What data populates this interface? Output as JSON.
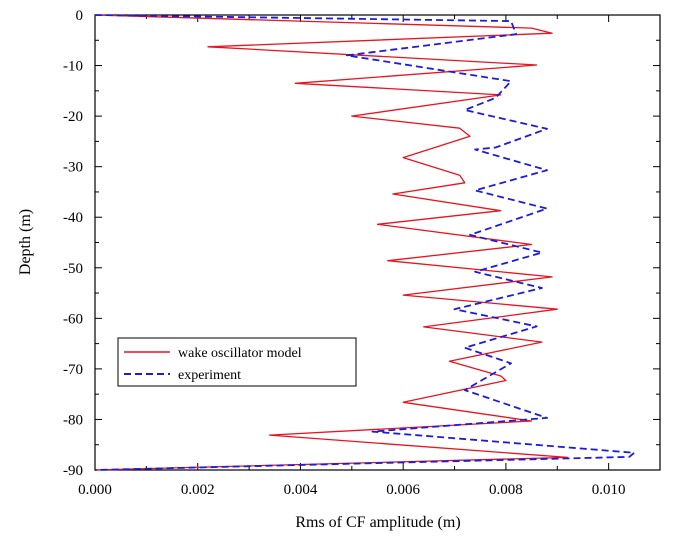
{
  "chart_data": {
    "type": "line",
    "xlabel": "Rms of CF amplitude (m)",
    "ylabel": "Depth (m)",
    "xlim": [
      0.0,
      0.011
    ],
    "ylim": [
      -90,
      0
    ],
    "x_ticks": [
      "0.000",
      "0.002",
      "0.004",
      "0.006",
      "0.008",
      "0.010"
    ],
    "y_ticks": [
      "0",
      "-10",
      "-20",
      "-30",
      "-40",
      "-50",
      "-60",
      "-70",
      "-80",
      "-90"
    ],
    "grid": false,
    "legend_position": "lower-left",
    "series": [
      {
        "name": "wake oscillator model",
        "color": "#e8141e",
        "style": "solid",
        "points": [
          [
            0.0,
            0.0
          ],
          [
            0.0085,
            -2.6
          ],
          [
            0.0089,
            -3.6
          ],
          [
            0.0022,
            -6.3
          ],
          [
            0.0086,
            -9.9
          ],
          [
            0.0039,
            -13.5
          ],
          [
            0.0079,
            -15.8
          ],
          [
            0.005,
            -20.0
          ],
          [
            0.0071,
            -22.4
          ],
          [
            0.0073,
            -24.0
          ],
          [
            0.006,
            -28.2
          ],
          [
            0.0071,
            -31.7
          ],
          [
            0.0072,
            -33.2
          ],
          [
            0.0058,
            -35.4
          ],
          [
            0.0079,
            -38.7
          ],
          [
            0.0055,
            -41.4
          ],
          [
            0.0085,
            -45.4
          ],
          [
            0.0057,
            -48.6
          ],
          [
            0.0089,
            -51.8
          ],
          [
            0.006,
            -55.4
          ],
          [
            0.009,
            -58.2
          ],
          [
            0.0064,
            -61.7
          ],
          [
            0.0087,
            -64.7
          ],
          [
            0.0069,
            -68.5
          ],
          [
            0.0079,
            -71.4
          ],
          [
            0.008,
            -72.3
          ],
          [
            0.006,
            -76.6
          ],
          [
            0.0085,
            -80.3
          ],
          [
            0.0034,
            -83.1
          ],
          [
            0.0092,
            -87.5
          ],
          [
            0.0,
            -90.0
          ]
        ]
      },
      {
        "name": "experiment",
        "color": "#1c1ce0",
        "style": "dashed",
        "points": [
          [
            0.0,
            0.0
          ],
          [
            0.0081,
            -1.2
          ],
          [
            0.0082,
            -3.8
          ],
          [
            0.0049,
            -8.0
          ],
          [
            0.0081,
            -13.1
          ],
          [
            0.0078,
            -16.4
          ],
          [
            0.0072,
            -18.8
          ],
          [
            0.0088,
            -22.5
          ],
          [
            0.0078,
            -26.2
          ],
          [
            0.0074,
            -26.6
          ],
          [
            0.0088,
            -30.7
          ],
          [
            0.0074,
            -34.7
          ],
          [
            0.0088,
            -38.3
          ],
          [
            0.0073,
            -43.5
          ],
          [
            0.0087,
            -47.0
          ],
          [
            0.0074,
            -50.8
          ],
          [
            0.0087,
            -54.0
          ],
          [
            0.007,
            -58.2
          ],
          [
            0.0086,
            -61.6
          ],
          [
            0.0072,
            -65.8
          ],
          [
            0.0081,
            -68.9
          ],
          [
            0.0072,
            -74.2
          ],
          [
            0.0088,
            -79.7
          ],
          [
            0.0054,
            -82.4
          ],
          [
            0.0105,
            -86.6
          ],
          [
            0.0104,
            -87.4
          ],
          [
            0.0,
            -90.0
          ]
        ]
      }
    ]
  }
}
